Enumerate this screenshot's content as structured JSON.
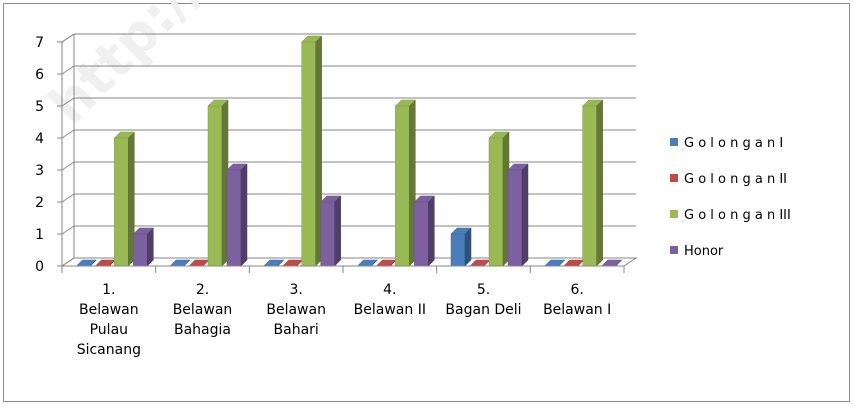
{
  "chart_data": {
    "type": "bar",
    "title": "",
    "xlabel": "",
    "ylabel": "",
    "ylim": [
      0,
      7
    ],
    "yticks": [
      "0",
      "1",
      "2",
      "3",
      "4",
      "5",
      "6",
      "7"
    ],
    "grid": true,
    "legend_position": "right",
    "three_d": true,
    "categories": [
      [
        "1.",
        "Belawan",
        "Pulau",
        "Sicanang"
      ],
      [
        "2.",
        "Belawan",
        "Bahagia"
      ],
      [
        "3.",
        "Belawan",
        "Bahari"
      ],
      [
        "4.",
        "Belawan II"
      ],
      [
        "5.",
        "Bagan Deli"
      ],
      [
        "6.",
        "Belawan I"
      ]
    ],
    "series": [
      {
        "name": "G o l o n g a n I",
        "color": "#4a7ebb",
        "values": [
          0,
          0,
          0,
          0,
          1,
          0
        ]
      },
      {
        "name": "G o l o n g a n II",
        "color": "#be4b48",
        "values": [
          0,
          0,
          0,
          0,
          0,
          0
        ]
      },
      {
        "name": "G o l o n g a n III",
        "color": "#98b954",
        "values": [
          4,
          5,
          7,
          5,
          4,
          5
        ]
      },
      {
        "name": "Honor",
        "color": "#7d60a0",
        "values": [
          1,
          3,
          2,
          2,
          3,
          0
        ]
      }
    ]
  },
  "watermark": "http://"
}
